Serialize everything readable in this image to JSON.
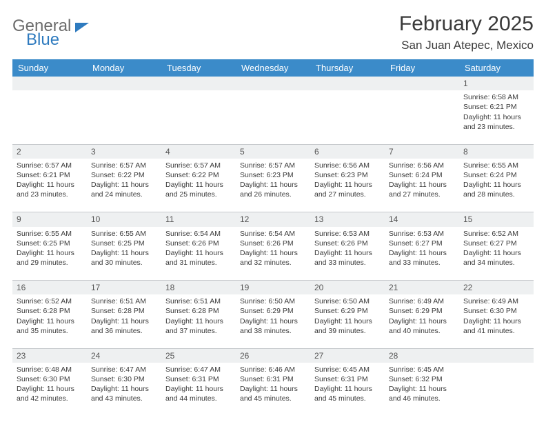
{
  "colors": {
    "header_bg": "#3b8bc9",
    "header_text": "#ffffff",
    "daynum_bg": "#eef0f1",
    "body_text": "#3a3a3a",
    "separator": "#c6c9cc",
    "logo_gray": "#6b6b6b",
    "logo_blue": "#2f7bbf",
    "page_bg": "#ffffff"
  },
  "typography": {
    "month_title_size": 30,
    "location_size": 17,
    "weekday_size": 13,
    "daynum_size": 12,
    "cell_size": 10.5,
    "family": "Arial"
  },
  "logo": {
    "word1": "General",
    "word2": "Blue"
  },
  "title": "February 2025",
  "location": "San Juan Atepec, Mexico",
  "weekdays": [
    "Sunday",
    "Monday",
    "Tuesday",
    "Wednesday",
    "Thursday",
    "Friday",
    "Saturday"
  ],
  "weeks": [
    [
      null,
      null,
      null,
      null,
      null,
      null,
      {
        "n": "1",
        "sunrise": "Sunrise: 6:58 AM",
        "sunset": "Sunset: 6:21 PM",
        "daylight": "Daylight: 11 hours and 23 minutes."
      }
    ],
    [
      {
        "n": "2",
        "sunrise": "Sunrise: 6:57 AM",
        "sunset": "Sunset: 6:21 PM",
        "daylight": "Daylight: 11 hours and 23 minutes."
      },
      {
        "n": "3",
        "sunrise": "Sunrise: 6:57 AM",
        "sunset": "Sunset: 6:22 PM",
        "daylight": "Daylight: 11 hours and 24 minutes."
      },
      {
        "n": "4",
        "sunrise": "Sunrise: 6:57 AM",
        "sunset": "Sunset: 6:22 PM",
        "daylight": "Daylight: 11 hours and 25 minutes."
      },
      {
        "n": "5",
        "sunrise": "Sunrise: 6:57 AM",
        "sunset": "Sunset: 6:23 PM",
        "daylight": "Daylight: 11 hours and 26 minutes."
      },
      {
        "n": "6",
        "sunrise": "Sunrise: 6:56 AM",
        "sunset": "Sunset: 6:23 PM",
        "daylight": "Daylight: 11 hours and 27 minutes."
      },
      {
        "n": "7",
        "sunrise": "Sunrise: 6:56 AM",
        "sunset": "Sunset: 6:24 PM",
        "daylight": "Daylight: 11 hours and 27 minutes."
      },
      {
        "n": "8",
        "sunrise": "Sunrise: 6:55 AM",
        "sunset": "Sunset: 6:24 PM",
        "daylight": "Daylight: 11 hours and 28 minutes."
      }
    ],
    [
      {
        "n": "9",
        "sunrise": "Sunrise: 6:55 AM",
        "sunset": "Sunset: 6:25 PM",
        "daylight": "Daylight: 11 hours and 29 minutes."
      },
      {
        "n": "10",
        "sunrise": "Sunrise: 6:55 AM",
        "sunset": "Sunset: 6:25 PM",
        "daylight": "Daylight: 11 hours and 30 minutes."
      },
      {
        "n": "11",
        "sunrise": "Sunrise: 6:54 AM",
        "sunset": "Sunset: 6:26 PM",
        "daylight": "Daylight: 11 hours and 31 minutes."
      },
      {
        "n": "12",
        "sunrise": "Sunrise: 6:54 AM",
        "sunset": "Sunset: 6:26 PM",
        "daylight": "Daylight: 11 hours and 32 minutes."
      },
      {
        "n": "13",
        "sunrise": "Sunrise: 6:53 AM",
        "sunset": "Sunset: 6:26 PM",
        "daylight": "Daylight: 11 hours and 33 minutes."
      },
      {
        "n": "14",
        "sunrise": "Sunrise: 6:53 AM",
        "sunset": "Sunset: 6:27 PM",
        "daylight": "Daylight: 11 hours and 33 minutes."
      },
      {
        "n": "15",
        "sunrise": "Sunrise: 6:52 AM",
        "sunset": "Sunset: 6:27 PM",
        "daylight": "Daylight: 11 hours and 34 minutes."
      }
    ],
    [
      {
        "n": "16",
        "sunrise": "Sunrise: 6:52 AM",
        "sunset": "Sunset: 6:28 PM",
        "daylight": "Daylight: 11 hours and 35 minutes."
      },
      {
        "n": "17",
        "sunrise": "Sunrise: 6:51 AM",
        "sunset": "Sunset: 6:28 PM",
        "daylight": "Daylight: 11 hours and 36 minutes."
      },
      {
        "n": "18",
        "sunrise": "Sunrise: 6:51 AM",
        "sunset": "Sunset: 6:28 PM",
        "daylight": "Daylight: 11 hours and 37 minutes."
      },
      {
        "n": "19",
        "sunrise": "Sunrise: 6:50 AM",
        "sunset": "Sunset: 6:29 PM",
        "daylight": "Daylight: 11 hours and 38 minutes."
      },
      {
        "n": "20",
        "sunrise": "Sunrise: 6:50 AM",
        "sunset": "Sunset: 6:29 PM",
        "daylight": "Daylight: 11 hours and 39 minutes."
      },
      {
        "n": "21",
        "sunrise": "Sunrise: 6:49 AM",
        "sunset": "Sunset: 6:29 PM",
        "daylight": "Daylight: 11 hours and 40 minutes."
      },
      {
        "n": "22",
        "sunrise": "Sunrise: 6:49 AM",
        "sunset": "Sunset: 6:30 PM",
        "daylight": "Daylight: 11 hours and 41 minutes."
      }
    ],
    [
      {
        "n": "23",
        "sunrise": "Sunrise: 6:48 AM",
        "sunset": "Sunset: 6:30 PM",
        "daylight": "Daylight: 11 hours and 42 minutes."
      },
      {
        "n": "24",
        "sunrise": "Sunrise: 6:47 AM",
        "sunset": "Sunset: 6:30 PM",
        "daylight": "Daylight: 11 hours and 43 minutes."
      },
      {
        "n": "25",
        "sunrise": "Sunrise: 6:47 AM",
        "sunset": "Sunset: 6:31 PM",
        "daylight": "Daylight: 11 hours and 44 minutes."
      },
      {
        "n": "26",
        "sunrise": "Sunrise: 6:46 AM",
        "sunset": "Sunset: 6:31 PM",
        "daylight": "Daylight: 11 hours and 45 minutes."
      },
      {
        "n": "27",
        "sunrise": "Sunrise: 6:45 AM",
        "sunset": "Sunset: 6:31 PM",
        "daylight": "Daylight: 11 hours and 45 minutes."
      },
      {
        "n": "28",
        "sunrise": "Sunrise: 6:45 AM",
        "sunset": "Sunset: 6:32 PM",
        "daylight": "Daylight: 11 hours and 46 minutes."
      },
      null
    ]
  ]
}
